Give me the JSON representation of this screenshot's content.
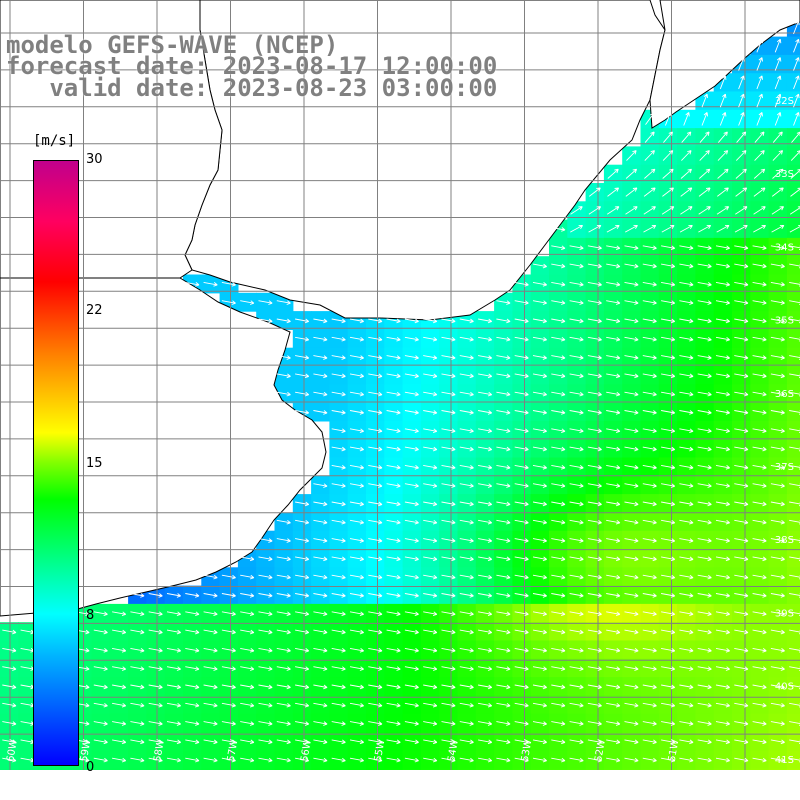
{
  "title": {
    "line1": "modelo GEFS-WAVE (NCEP)",
    "line2": "forecast date: 2023-08-17 12:00:00",
    "line3": "   valid date: 2023-08-23 03:00:00"
  },
  "legend": {
    "unit": "[m/s]",
    "ticks": [
      {
        "label": "30",
        "value": 30
      },
      {
        "label": "22",
        "value": 22
      },
      {
        "label": "15",
        "value": 15
      },
      {
        "label": "8",
        "value": 8
      },
      {
        "label": "0",
        "value": 0
      }
    ],
    "range": [
      0,
      30
    ]
  },
  "map": {
    "lat_labels": [
      "32S",
      "33S",
      "34S",
      "35S",
      "36S",
      "37S",
      "38S",
      "39S",
      "40S",
      "41S"
    ],
    "lon_labels": [
      "60W",
      "59W",
      "58W",
      "57W",
      "56W",
      "55W",
      "54W",
      "53W",
      "52W",
      "51W"
    ],
    "land_color": "#ffffff",
    "arrow_color": "#ffffff",
    "grid_color": "#808080",
    "coast_color": "#000000",
    "field_variable": "wind speed"
  }
}
